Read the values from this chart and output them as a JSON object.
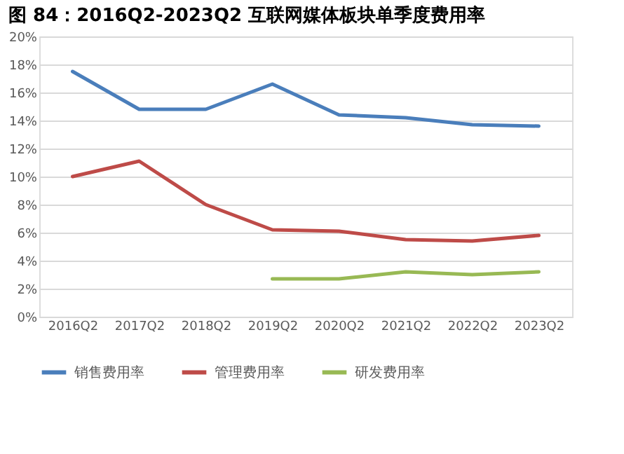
{
  "chart_data": {
    "type": "line",
    "title": "图 84：2016Q2-2023Q2 互联网媒体板块单季度费用率",
    "categories": [
      "2016Q2",
      "2017Q2",
      "2018Q2",
      "2019Q2",
      "2020Q2",
      "2021Q2",
      "2022Q2",
      "2023Q2"
    ],
    "series": [
      {
        "name": "销售费用率",
        "color": "#4a7ebb",
        "values": [
          17.5,
          14.8,
          14.8,
          16.6,
          14.4,
          14.2,
          13.7,
          13.6
        ]
      },
      {
        "name": "管理费用率",
        "color": "#be4b48",
        "values": [
          10.0,
          11.1,
          8.0,
          6.2,
          6.1,
          5.5,
          5.4,
          5.8
        ]
      },
      {
        "name": "研发费用率",
        "color": "#98b954",
        "values": [
          null,
          null,
          null,
          2.7,
          2.7,
          3.2,
          3.0,
          3.2
        ]
      }
    ],
    "ylim": [
      0,
      20
    ],
    "yticks": [
      {
        "value": 0,
        "label": "0%"
      },
      {
        "value": 2,
        "label": "2%"
      },
      {
        "value": 4,
        "label": "4%"
      },
      {
        "value": 6,
        "label": "6%"
      },
      {
        "value": 8,
        "label": "8%"
      },
      {
        "value": 10,
        "label": "10%"
      },
      {
        "value": 12,
        "label": "12%"
      },
      {
        "value": 14,
        "label": "14%"
      },
      {
        "value": 16,
        "label": "16%"
      },
      {
        "value": 18,
        "label": "18%"
      },
      {
        "value": 20,
        "label": "20%"
      }
    ],
    "grid": "y",
    "legend": "bottom",
    "marker": "none",
    "line_style": "solid"
  }
}
